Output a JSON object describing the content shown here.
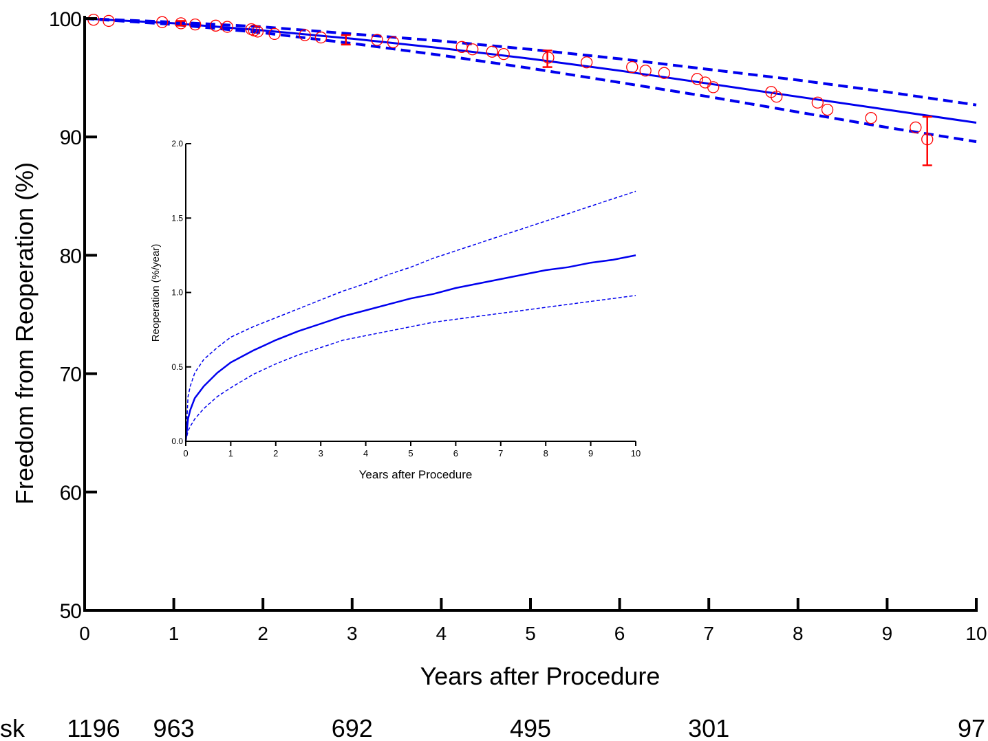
{
  "chart_data": [
    {
      "type": "line",
      "title": "",
      "xlabel": "Years after Procedure",
      "ylabel": "Freedom from Reoperation (%)",
      "xlim": [
        0,
        10
      ],
      "ylim": [
        50,
        100
      ],
      "xticks": [
        0,
        1,
        2,
        3,
        4,
        5,
        6,
        7,
        8,
        9,
        10
      ],
      "yticks": [
        50,
        60,
        70,
        80,
        90,
        100
      ],
      "grid": false,
      "colors": {
        "fit": "#0000ee",
        "observed": "#ff0000"
      },
      "series": [
        {
          "style": "solid",
          "x": [
            0,
            1,
            2,
            3,
            4,
            5,
            6,
            7,
            8,
            9,
            10
          ],
          "y": [
            100,
            99.6,
            99.0,
            98.3,
            97.5,
            96.6,
            95.6,
            94.5,
            93.4,
            92.3,
            91.2
          ]
        },
        {
          "style": "dashed",
          "x": [
            0,
            1,
            2,
            3,
            4,
            5,
            6,
            7,
            8,
            9,
            10
          ],
          "y": [
            100,
            99.7,
            99.3,
            98.7,
            98.1,
            97.4,
            96.6,
            95.7,
            94.8,
            93.8,
            92.7
          ]
        },
        {
          "style": "dashed",
          "x": [
            0,
            1,
            2,
            3,
            4,
            5,
            6,
            7,
            8,
            9,
            10
          ],
          "y": [
            100,
            99.5,
            98.8,
            97.9,
            96.9,
            95.8,
            94.6,
            93.4,
            92.1,
            90.8,
            89.6
          ]
        },
        {
          "style": "circles",
          "x": [
            0.1,
            0.27,
            0.87,
            1.08,
            1.24,
            1.47,
            1.6,
            1.87,
            1.9,
            1.94,
            2.13,
            2.47,
            2.65,
            3.28,
            3.46,
            4.23,
            4.35,
            4.57,
            4.7,
            5.2,
            5.63,
            6.14,
            6.29,
            6.5,
            6.87,
            6.96,
            7.05,
            7.7,
            7.76,
            8.22,
            8.33,
            8.82,
            9.32,
            9.45
          ],
          "y": [
            99.9,
            99.8,
            99.7,
            99.6,
            99.5,
            99.4,
            99.3,
            99.1,
            99.0,
            98.9,
            98.7,
            98.6,
            98.4,
            98.2,
            98.0,
            97.6,
            97.4,
            97.2,
            97.0,
            96.7,
            96.3,
            95.9,
            95.6,
            95.4,
            94.9,
            94.6,
            94.2,
            93.8,
            93.4,
            92.9,
            92.3,
            91.6,
            90.8,
            89.8
          ]
        }
      ],
      "error_bars": [
        {
          "x": 1.08,
          "y": 99.6,
          "low": 99.4,
          "high": 99.8
        },
        {
          "x": 2.93,
          "y": 98.2,
          "low": 97.8,
          "high": 98.6
        },
        {
          "x": 5.19,
          "y": 96.6,
          "low": 95.9,
          "high": 97.3
        },
        {
          "x": 9.45,
          "y": 89.8,
          "low": 87.6,
          "high": 91.7
        }
      ],
      "at_risk": {
        "label": "sk",
        "items": [
          {
            "x": 0.1,
            "value": "1196"
          },
          {
            "x": 1.0,
            "value": "963"
          },
          {
            "x": 3.0,
            "value": "692"
          },
          {
            "x": 5.0,
            "value": "495"
          },
          {
            "x": 7.0,
            "value": "301"
          },
          {
            "x": 10.0,
            "value": "97"
          }
        ]
      }
    },
    {
      "type": "line",
      "title": "",
      "xlabel": "Years after Procedure",
      "ylabel": "Reoperation (%/year)",
      "xlim": [
        0,
        10
      ],
      "ylim": [
        0,
        2.0
      ],
      "xticks": [
        0,
        1,
        2,
        3,
        4,
        5,
        6,
        7,
        8,
        9,
        10
      ],
      "yticks": [
        0.0,
        0.5,
        1.0,
        1.5,
        2.0
      ],
      "ytick_labels": [
        "0.0",
        "0.5",
        "1.0",
        "1.5",
        "2.0"
      ],
      "grid": false,
      "series": [
        {
          "style": "solid",
          "x": [
            0,
            0.05,
            0.1,
            0.2,
            0.4,
            0.7,
            1,
            1.5,
            2,
            2.5,
            3,
            3.5,
            4,
            4.5,
            5,
            5.5,
            6,
            6.5,
            7,
            7.5,
            8,
            8.5,
            9,
            9.5,
            10
          ],
          "y": [
            0,
            0.15,
            0.21,
            0.29,
            0.37,
            0.46,
            0.53,
            0.61,
            0.68,
            0.74,
            0.79,
            0.84,
            0.88,
            0.92,
            0.96,
            0.99,
            1.03,
            1.06,
            1.09,
            1.12,
            1.15,
            1.17,
            1.2,
            1.22,
            1.25
          ]
        },
        {
          "style": "dotted",
          "x": [
            0,
            0.05,
            0.1,
            0.2,
            0.4,
            0.7,
            1,
            1.5,
            2,
            2.5,
            3,
            3.5,
            4,
            4.5,
            5,
            5.5,
            6,
            6.5,
            7,
            7.5,
            8,
            8.5,
            9,
            9.5,
            10
          ],
          "y": [
            0,
            0.3,
            0.37,
            0.46,
            0.55,
            0.63,
            0.7,
            0.77,
            0.83,
            0.89,
            0.95,
            1.01,
            1.06,
            1.12,
            1.17,
            1.23,
            1.28,
            1.33,
            1.38,
            1.43,
            1.48,
            1.53,
            1.58,
            1.63,
            1.68
          ]
        },
        {
          "style": "dotted",
          "x": [
            0,
            0.05,
            0.1,
            0.2,
            0.4,
            0.7,
            1,
            1.5,
            2,
            2.5,
            3,
            3.5,
            4,
            4.5,
            5,
            5.5,
            6,
            6.5,
            7,
            7.5,
            8,
            8.5,
            9,
            9.5,
            10
          ],
          "y": [
            0,
            0.07,
            0.1,
            0.15,
            0.22,
            0.3,
            0.36,
            0.45,
            0.52,
            0.58,
            0.63,
            0.68,
            0.71,
            0.74,
            0.77,
            0.8,
            0.82,
            0.84,
            0.86,
            0.88,
            0.9,
            0.92,
            0.94,
            0.96,
            0.98
          ]
        }
      ]
    }
  ]
}
